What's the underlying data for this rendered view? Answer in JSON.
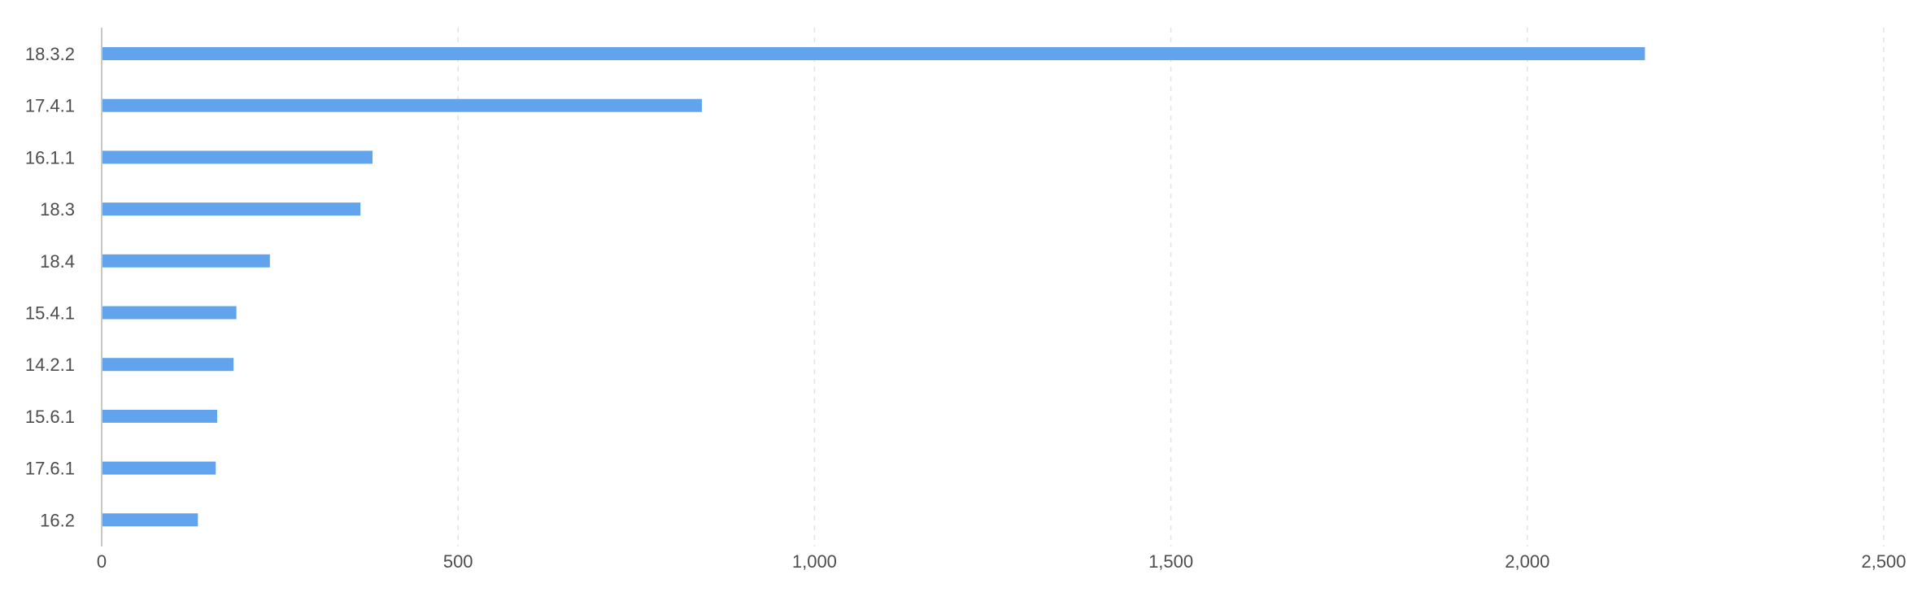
{
  "chart_data": {
    "type": "bar",
    "orientation": "horizontal",
    "categories": [
      "18.3.2",
      "17.4.1",
      "16.1.1",
      "18.3",
      "18.4",
      "15.4.1",
      "14.2.1",
      "15.6.1",
      "17.6.1",
      "16.2"
    ],
    "values": [
      2165,
      842,
      380,
      363,
      236,
      189,
      185,
      162,
      160,
      135
    ],
    "x_ticks": [
      "0",
      "500",
      "1,000",
      "1,500",
      "2,000",
      "2,500"
    ],
    "xlim": [
      0,
      2500
    ],
    "xlabel": "",
    "ylabel": "",
    "grid": "vertical-dashed",
    "legend": "none",
    "bar_color": "#62a3ed",
    "grid_color": "#e3e3e3",
    "axis_color": "#c7c7c7",
    "text_color": "#4d4d4d"
  }
}
